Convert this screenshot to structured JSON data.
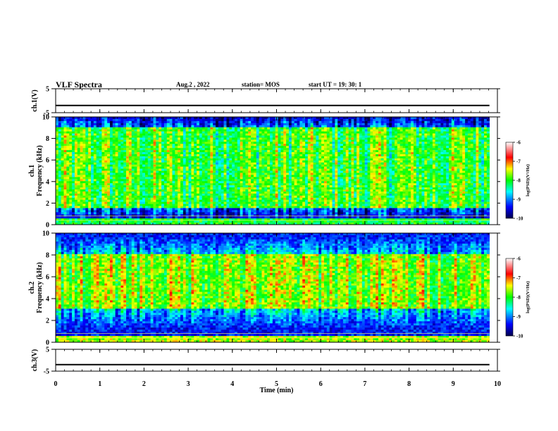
{
  "header": {
    "title": "VLF Spectra",
    "date": "Aug.2 , 2022",
    "station": "station= MOS",
    "start_ut": "start UT =  19: 30: 1"
  },
  "chart_data": [
    {
      "type": "line",
      "panel": "ch1_voltage",
      "ylabel": "ch.1(V)",
      "ylim": [
        -5,
        5
      ],
      "yticks": [
        5,
        -5
      ],
      "x": [
        0,
        9.82
      ],
      "y": [
        -2,
        -2
      ]
    },
    {
      "type": "heatmap",
      "panel": "ch1_spectrogram",
      "ylabel": "ch.1\nFrequency (kHz)",
      "ylim": [
        0,
        10
      ],
      "yticks": [
        0,
        2,
        4,
        6,
        8,
        10
      ],
      "xlim": [
        0,
        9.82
      ],
      "colorbar": {
        "label": "log(PSD)(V²/Hz)",
        "range": [
          -10,
          -6
        ],
        "ticks": [
          -6,
          -7,
          -8,
          -9,
          -10
        ]
      },
      "description_values": {
        "dominant_band_khz": [
          1.5,
          9
        ],
        "background_level": -9.5,
        "peak_level": -7
      }
    },
    {
      "type": "heatmap",
      "panel": "ch2_spectrogram",
      "ylabel": "ch.2\nFrequency (kHz)",
      "ylim": [
        0,
        10
      ],
      "yticks": [
        0,
        2,
        4,
        6,
        8,
        10
      ],
      "xlim": [
        0,
        9.82
      ],
      "colorbar": {
        "label": "log(PSD)(V²/Hz)",
        "range": [
          -10,
          -6
        ],
        "ticks": [
          -6,
          -7,
          -8,
          -9,
          -10
        ]
      },
      "description_values": {
        "dominant_band_khz": [
          3,
          8
        ],
        "background_level": -9,
        "peak_level": -6.8
      }
    },
    {
      "type": "line",
      "panel": "ch3_voltage",
      "ylabel": "ch.3(V)",
      "ylim": [
        -5,
        5
      ],
      "yticks": [
        5,
        -5
      ],
      "x": [
        0,
        9.82
      ],
      "y": [
        -2,
        -2
      ]
    }
  ],
  "xaxis": {
    "label": "Time (min)",
    "xlim": [
      0,
      10
    ],
    "ticks": [
      0,
      1,
      2,
      3,
      4,
      5,
      6,
      7,
      8,
      9,
      10
    ]
  }
}
